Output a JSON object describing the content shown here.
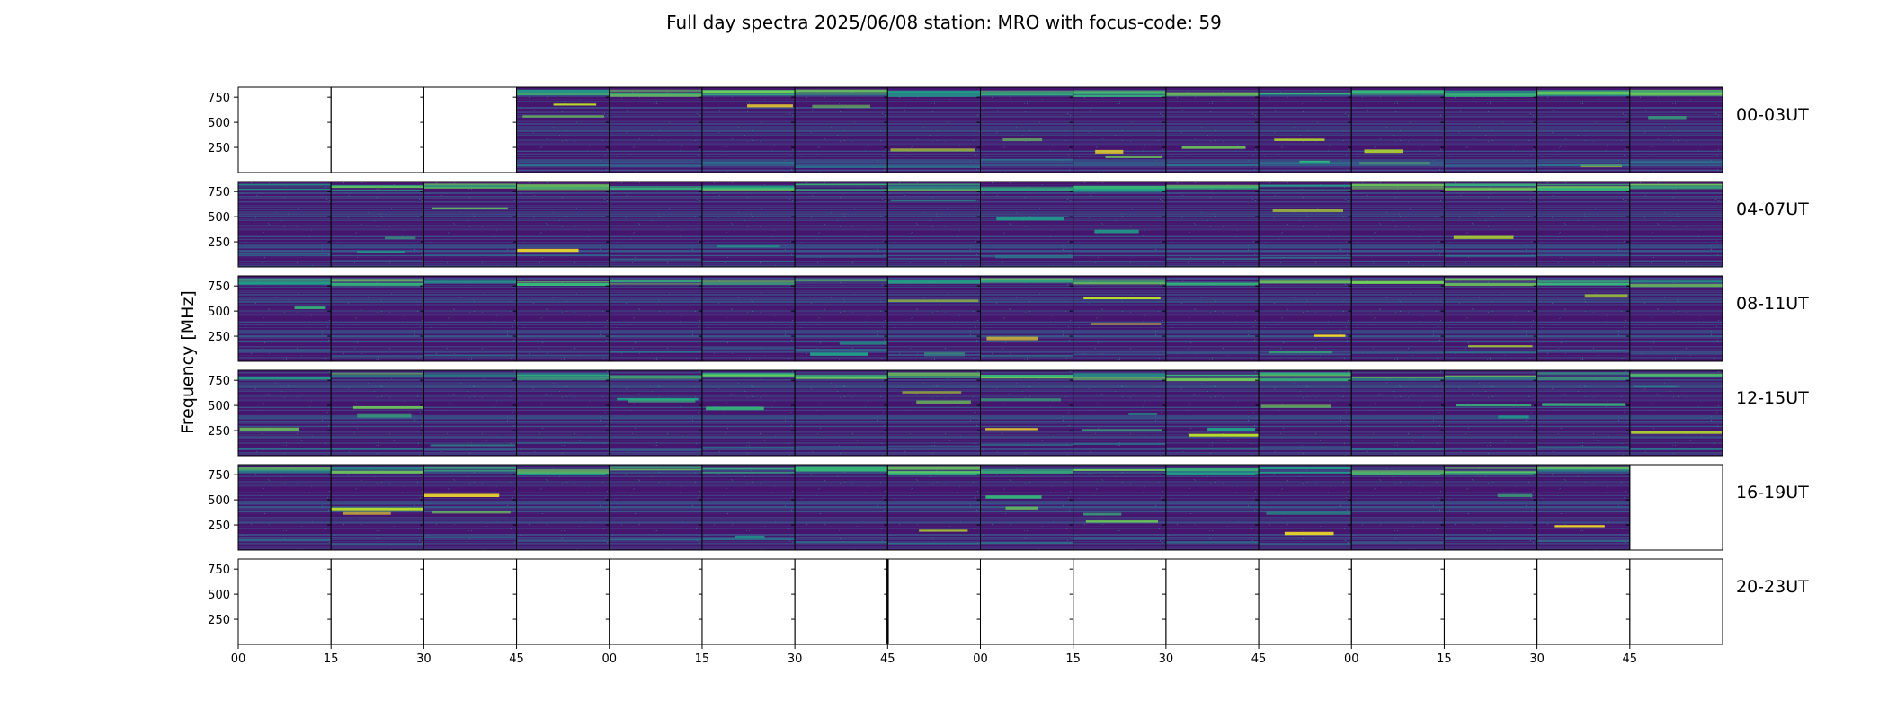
{
  "chart_data": {
    "type": "heatmap",
    "title": "Full day spectra 2025/06/08 station: MRO with focus-code: 59",
    "ylabel": "Frequency [MHz]",
    "xlabel": "",
    "ylim": [
      0,
      850
    ],
    "yticks": [
      250,
      500,
      750
    ],
    "xtick_labels": [
      "00",
      "15",
      "30",
      "45",
      "00",
      "15",
      "30",
      "45",
      "00",
      "15",
      "30",
      "45",
      "00",
      "15",
      "30",
      "45"
    ],
    "colormap": "viridis",
    "rows": [
      {
        "label": "00-03UT",
        "data_start_panel": 3,
        "data_end_panel": 16
      },
      {
        "label": "04-07UT",
        "data_start_panel": 0,
        "data_end_panel": 16
      },
      {
        "label": "08-11UT",
        "data_start_panel": 0,
        "data_end_panel": 16
      },
      {
        "label": "12-15UT",
        "data_start_panel": 0,
        "data_end_panel": 16
      },
      {
        "label": "16-19UT",
        "data_start_panel": 0,
        "data_end_panel": 15
      },
      {
        "label": "20-23UT",
        "data_start_panel": 0,
        "data_end_panel": 0
      }
    ],
    "panels_per_row": 16,
    "grid": false
  }
}
